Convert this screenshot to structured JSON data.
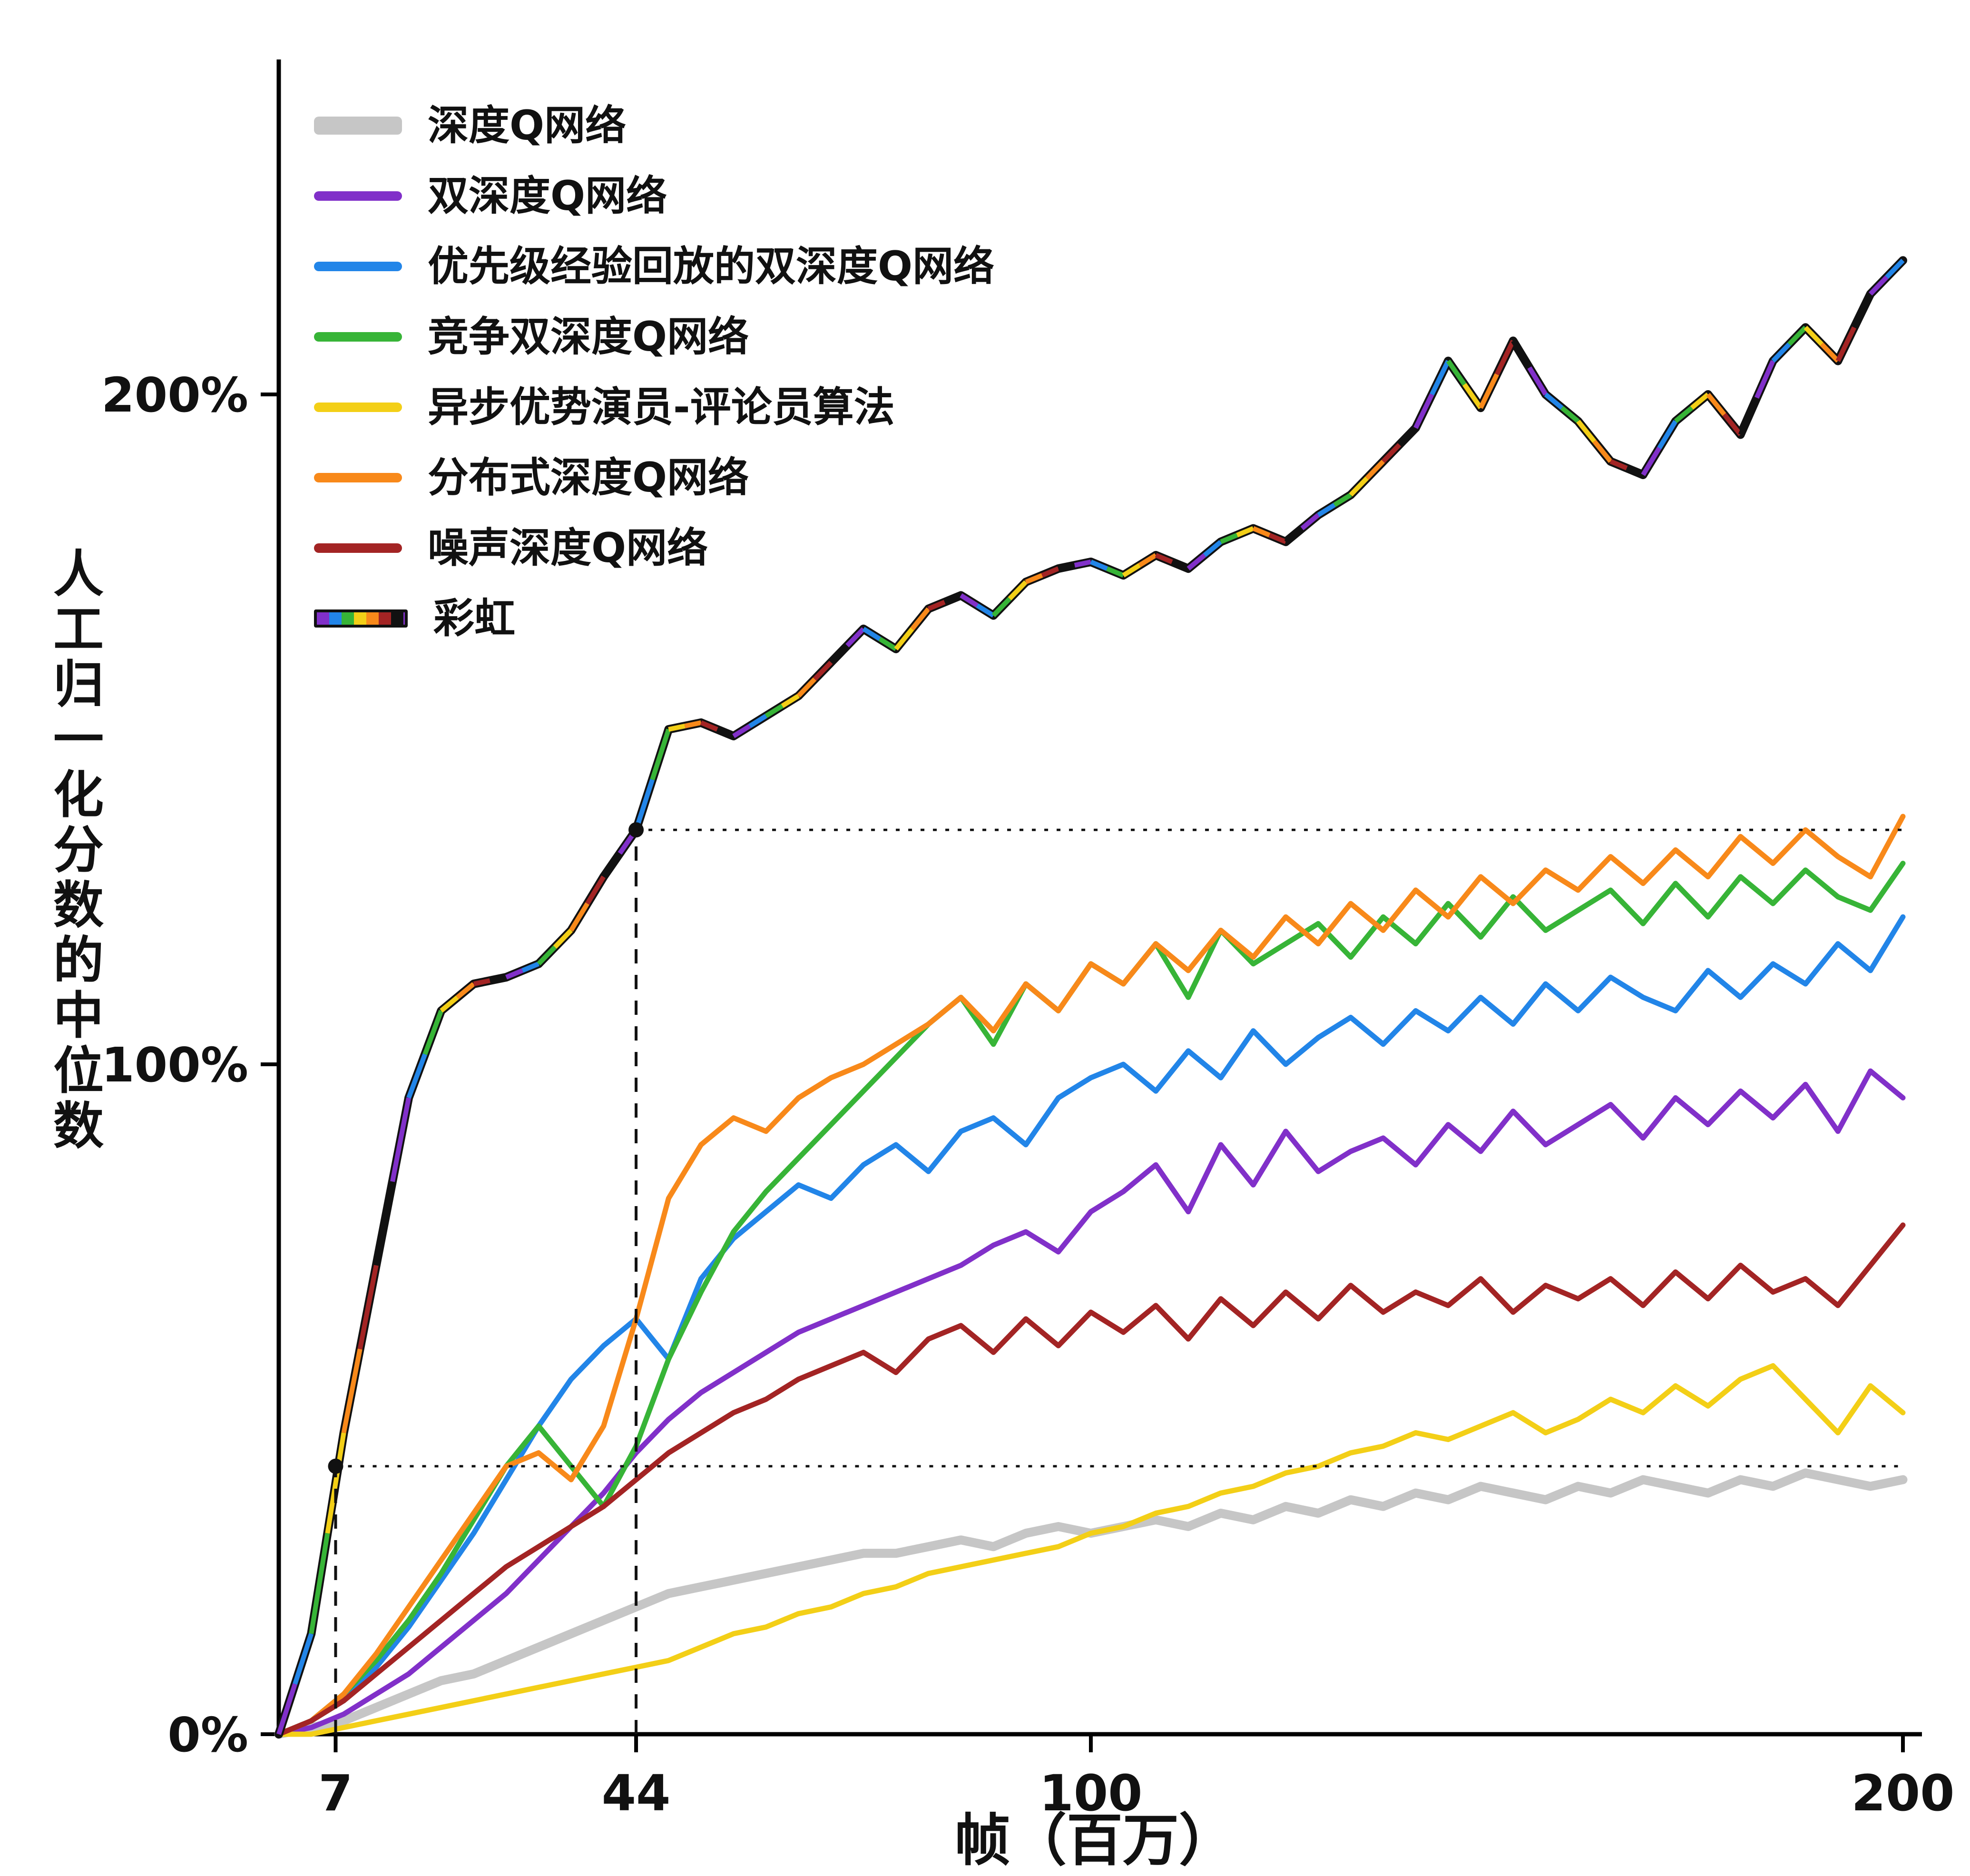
{
  "figure": {
    "background": "#ffffff",
    "text_color": "#111111",
    "axis_color": "#000000"
  },
  "chart_data": {
    "type": "line",
    "title": "",
    "xlabel": "帧（百万）",
    "ylabel": "人工归一化分数的中位数",
    "legend_position": "top-left",
    "grid": false,
    "xlim": [
      0,
      200
    ],
    "ylim": [
      0,
      250
    ],
    "x_ticks": [
      7,
      44,
      100,
      200
    ],
    "y_ticks": [
      {
        "value": 0,
        "label": "0%"
      },
      {
        "value": 100,
        "label": "100%"
      },
      {
        "value": 200,
        "label": "200%"
      }
    ],
    "x": [
      0,
      4,
      8,
      12,
      16,
      20,
      24,
      28,
      32,
      36,
      40,
      44,
      48,
      52,
      56,
      60,
      64,
      68,
      72,
      76,
      80,
      84,
      88,
      92,
      96,
      100,
      104,
      108,
      112,
      116,
      120,
      124,
      128,
      132,
      136,
      140,
      144,
      148,
      152,
      156,
      160,
      164,
      168,
      172,
      176,
      180,
      184,
      188,
      192,
      196,
      200
    ],
    "series": [
      {
        "name": "深度Q网络",
        "color": "#c6c6c6",
        "width": 19,
        "values": [
          0,
          1,
          2,
          4,
          6,
          8,
          9,
          11,
          13,
          15,
          17,
          19,
          21,
          22,
          23,
          24,
          25,
          26,
          27,
          27,
          28,
          29,
          28,
          30,
          31,
          30,
          31,
          32,
          31,
          33,
          32,
          34,
          33,
          35,
          34,
          36,
          35,
          37,
          36,
          35,
          37,
          36,
          38,
          37,
          36,
          38,
          37,
          39,
          38,
          37,
          38
        ]
      },
      {
        "name": "双深度Q网络",
        "color": "#8130c9",
        "width": 11,
        "values": [
          0,
          1,
          3,
          6,
          9,
          13,
          17,
          21,
          26,
          31,
          36,
          42,
          47,
          51,
          54,
          57,
          60,
          62,
          64,
          66,
          68,
          70,
          73,
          75,
          72,
          78,
          81,
          85,
          78,
          88,
          82,
          90,
          84,
          87,
          89,
          85,
          91,
          87,
          93,
          88,
          91,
          94,
          89,
          95,
          91,
          96,
          92,
          97,
          90,
          99,
          95
        ]
      },
      {
        "name": "优先级经验回放的双深度Q网络",
        "color": "#2285e8",
        "width": 11,
        "values": [
          0,
          2,
          5,
          10,
          16,
          23,
          30,
          38,
          46,
          53,
          58,
          62,
          56,
          68,
          74,
          78,
          82,
          80,
          85,
          88,
          84,
          90,
          92,
          88,
          95,
          98,
          100,
          96,
          102,
          98,
          105,
          100,
          104,
          107,
          103,
          108,
          105,
          110,
          106,
          112,
          108,
          113,
          110,
          108,
          114,
          110,
          115,
          112,
          118,
          114,
          122
        ]
      },
      {
        "name": "竞争双深度Q网络",
        "color": "#37b437",
        "width": 11,
        "values": [
          0,
          2,
          6,
          11,
          17,
          24,
          32,
          40,
          46,
          40,
          34,
          43,
          56,
          66,
          75,
          81,
          86,
          91,
          96,
          101,
          106,
          110,
          103,
          112,
          108,
          115,
          112,
          118,
          110,
          120,
          115,
          118,
          121,
          116,
          122,
          118,
          124,
          119,
          125,
          120,
          123,
          126,
          121,
          127,
          122,
          128,
          124,
          129,
          125,
          123,
          130
        ]
      },
      {
        "name": "异步优势演员-评论员算法",
        "color": "#f3cf17",
        "width": 11,
        "values": [
          0,
          0,
          1,
          2,
          3,
          4,
          5,
          6,
          7,
          8,
          9,
          10,
          11,
          13,
          15,
          16,
          18,
          19,
          21,
          22,
          24,
          25,
          26,
          27,
          28,
          30,
          31,
          33,
          34,
          36,
          37,
          39,
          40,
          42,
          43,
          45,
          44,
          46,
          48,
          45,
          47,
          50,
          48,
          52,
          49,
          53,
          55,
          50,
          45,
          52,
          48
        ]
      },
      {
        "name": "分布式深度Q网络",
        "color": "#f8891a",
        "width": 11,
        "values": [
          0,
          2,
          6,
          12,
          19,
          26,
          33,
          40,
          42,
          38,
          46,
          62,
          80,
          88,
          92,
          90,
          95,
          98,
          100,
          103,
          106,
          110,
          105,
          112,
          108,
          115,
          112,
          118,
          114,
          120,
          116,
          122,
          118,
          124,
          120,
          126,
          122,
          128,
          124,
          129,
          126,
          131,
          127,
          132,
          128,
          134,
          130,
          135,
          131,
          128,
          137
        ]
      },
      {
        "name": "噪声深度Q网络",
        "color": "#a32424",
        "width": 11,
        "values": [
          0,
          2,
          5,
          9,
          13,
          17,
          21,
          25,
          28,
          31,
          34,
          38,
          42,
          45,
          48,
          50,
          53,
          55,
          57,
          54,
          59,
          61,
          57,
          62,
          58,
          63,
          60,
          64,
          59,
          65,
          61,
          66,
          62,
          67,
          63,
          66,
          64,
          68,
          63,
          67,
          65,
          68,
          64,
          69,
          65,
          70,
          66,
          68,
          64,
          70,
          76
        ]
      },
      {
        "name": "彩虹",
        "multicolor": true,
        "width": 11,
        "palette": [
          "#8130c9",
          "#2285e8",
          "#37b437",
          "#f3cf17",
          "#f8891a",
          "#a32424",
          "#111111"
        ],
        "values": [
          0,
          15,
          45,
          70,
          95,
          108,
          112,
          113,
          115,
          120,
          128,
          135,
          150,
          151,
          149,
          152,
          155,
          160,
          165,
          162,
          168,
          170,
          167,
          172,
          174,
          175,
          173,
          176,
          174,
          178,
          180,
          178,
          182,
          185,
          190,
          195,
          205,
          198,
          208,
          200,
          196,
          190,
          188,
          196,
          200,
          194,
          205,
          210,
          205,
          215,
          220
        ]
      }
    ],
    "annotations": {
      "reference_points": [
        {
          "x": 7,
          "y": 40
        },
        {
          "x": 44,
          "y": 135
        }
      ]
    }
  }
}
